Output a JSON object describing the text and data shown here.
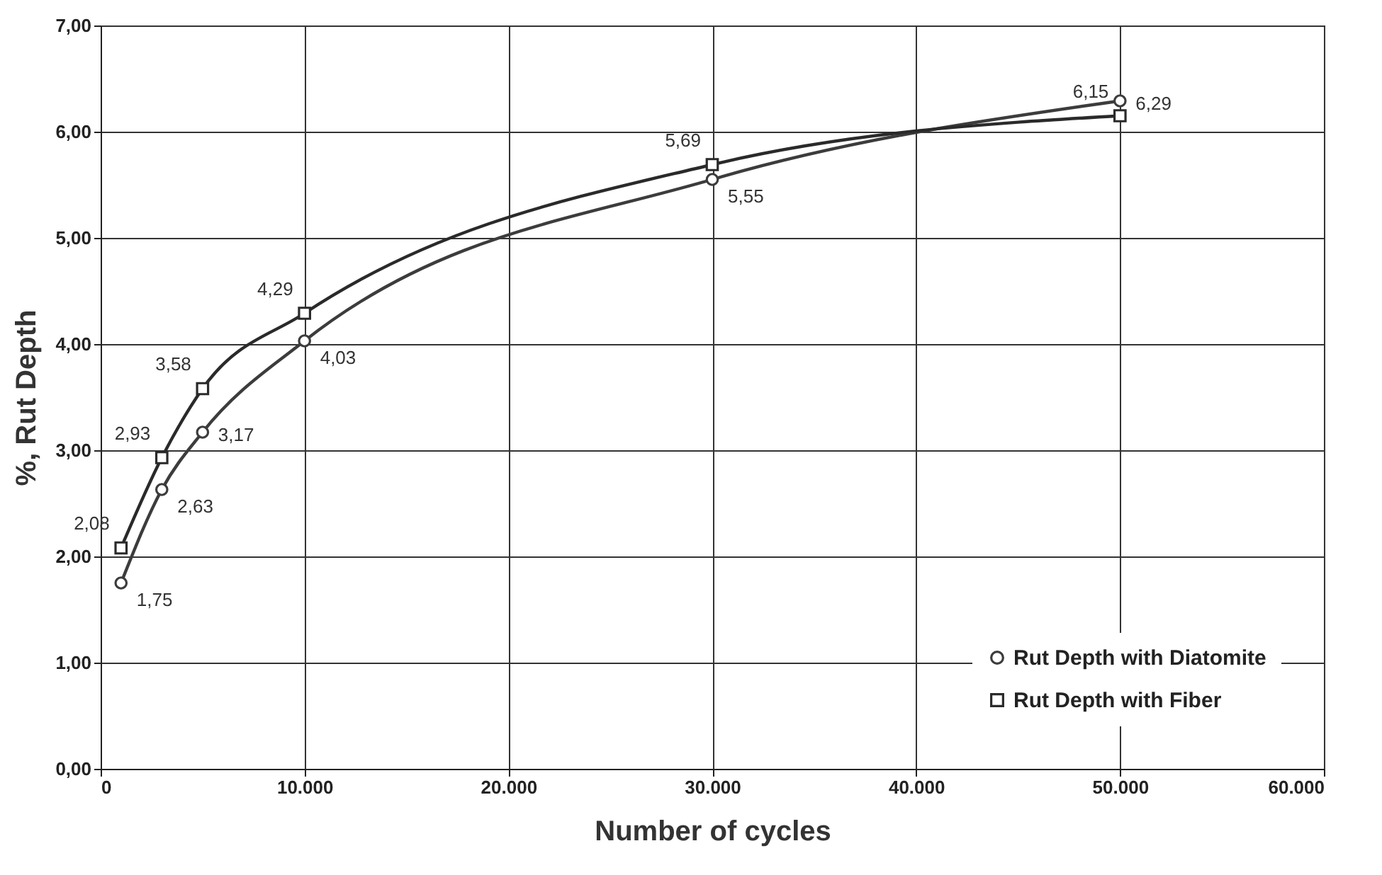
{
  "chart_data": {
    "type": "line",
    "xlabel": "Number of cycles",
    "ylabel": "%, Rut Depth",
    "x": [
      1000,
      3000,
      5000,
      10000,
      30000,
      50000
    ],
    "series": [
      {
        "name": "Rut Depth with Diatomite",
        "color": "#3c3c3c",
        "marker": "circle",
        "values": [
          1.75,
          2.63,
          3.17,
          4.03,
          5.55,
          6.29
        ],
        "value_labels": [
          "1,75",
          "2,63",
          "3,17",
          "4,03",
          "5,55",
          "6,29"
        ]
      },
      {
        "name": "Rut Depth with Fiber",
        "color": "#2a2a2a",
        "marker": "square",
        "values": [
          2.08,
          2.93,
          3.58,
          4.29,
          5.69,
          6.15
        ],
        "value_labels": [
          "2,08",
          "2,93",
          "3,58",
          "4,29",
          "5,69",
          "6,15"
        ]
      }
    ],
    "xlim": [
      0,
      60000
    ],
    "xticks": [
      {
        "value": 0,
        "label": "0"
      },
      {
        "value": 10000,
        "label": "10.000"
      },
      {
        "value": 20000,
        "label": "20.000"
      },
      {
        "value": 30000,
        "label": "30.000"
      },
      {
        "value": 40000,
        "label": "40.000"
      },
      {
        "value": 50000,
        "label": "50.000"
      },
      {
        "value": 60000,
        "label": "60.000"
      }
    ],
    "ylim": [
      0,
      7
    ],
    "yticks": [
      {
        "value": 0,
        "label": "0,00"
      },
      {
        "value": 1,
        "label": "1,00"
      },
      {
        "value": 2,
        "label": "2,00"
      },
      {
        "value": 3,
        "label": "3,00"
      },
      {
        "value": 4,
        "label": "4,00"
      },
      {
        "value": 5,
        "label": "5,00"
      },
      {
        "value": 6,
        "label": "6,00"
      },
      {
        "value": 7,
        "label": "7,00"
      }
    ],
    "grid": true,
    "legend": "bottom right",
    "line_style": "solid"
  }
}
